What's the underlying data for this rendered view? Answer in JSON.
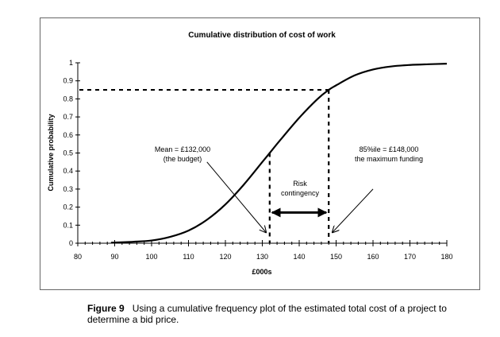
{
  "chart_data": {
    "type": "line",
    "title": "Cumulative distribution of cost of work",
    "xlabel": "£000s",
    "ylabel": "Cumulative probability",
    "xlim": [
      80,
      180
    ],
    "ylim": [
      0,
      1
    ],
    "xticks": [
      80,
      90,
      100,
      110,
      120,
      130,
      140,
      150,
      160,
      170,
      180
    ],
    "yticks": [
      0,
      0.1,
      0.2,
      0.3,
      0.4,
      0.5,
      0.6,
      0.7,
      0.8,
      0.9,
      1
    ],
    "ytick_labels": [
      "0",
      "0.1",
      "0.2",
      "0.3",
      "0.4",
      "0.5",
      "0.6",
      "0.7",
      "0.8",
      "0.9",
      "1"
    ],
    "grid": false,
    "series": [
      {
        "name": "Cumulative distribution",
        "x": [
          89,
          95,
          100,
          105,
          110,
          115,
          120,
          125,
          130,
          132,
          135,
          140,
          145,
          148,
          150,
          155,
          160,
          165,
          170,
          175,
          180
        ],
        "y": [
          0.003,
          0.008,
          0.015,
          0.035,
          0.07,
          0.13,
          0.215,
          0.325,
          0.45,
          0.5,
          0.575,
          0.695,
          0.8,
          0.85,
          0.875,
          0.93,
          0.963,
          0.98,
          0.988,
          0.992,
          0.995
        ]
      }
    ],
    "reference_lines": {
      "percentile_85_y": 0.85,
      "mean_x": 132,
      "mean_y": 0.5,
      "p85_x": 148
    },
    "annotations": {
      "mean_line1": "Mean = £132,000",
      "mean_line2": "(the budget)",
      "p85_line1": "85%ile = £148,000",
      "p85_line2": "the maximum funding",
      "risk_line1": "Risk",
      "risk_line2": "contingency",
      "risk_arrow_y": 0.17,
      "mean_arrow": {
        "from": [
          115,
          0.45
        ],
        "to": [
          131,
          0.06
        ]
      },
      "p85_arrow": {
        "from": [
          160,
          0.3
        ],
        "to": [
          149,
          0.06
        ]
      }
    }
  },
  "caption": {
    "label": "Figure 9",
    "text": "Using a cumulative frequency plot of the estimated total cost of a project to determine a bid price."
  }
}
